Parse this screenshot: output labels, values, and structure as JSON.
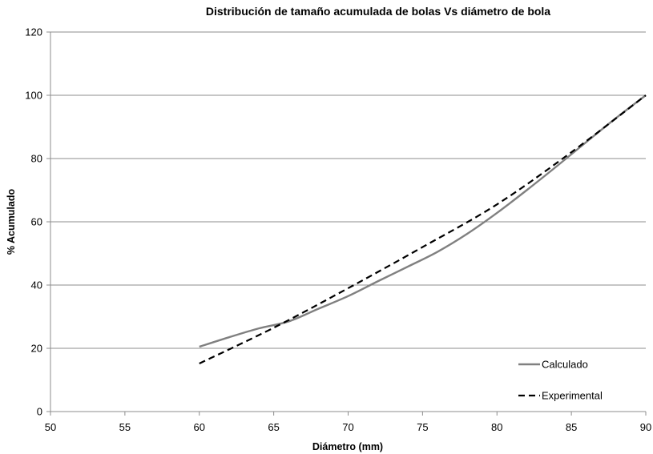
{
  "chart_data": {
    "type": "line",
    "title": "Distribución de tamaño acumulada de bolas Vs diámetro de bola",
    "xlabel": "Diámetro (mm)",
    "ylabel": "% Acumulado",
    "xlim": [
      50,
      90
    ],
    "ylim": [
      0,
      120
    ],
    "xticks": [
      50,
      55,
      60,
      65,
      70,
      75,
      80,
      85,
      90
    ],
    "yticks": [
      0,
      20,
      40,
      60,
      80,
      100,
      120
    ],
    "grid": "horizontal",
    "legend_position": "bottom-right",
    "series": [
      {
        "name": "Calculado",
        "color": "#808080",
        "style": "solid",
        "x": [
          60,
          62,
          64,
          66,
          68,
          70,
          72,
          74,
          76,
          78,
          80,
          82,
          84,
          86,
          88,
          90
        ],
        "y": [
          20.5,
          23.5,
          26.3,
          28.5,
          32.5,
          36.5,
          41.2,
          45.8,
          50.5,
          56.2,
          62.8,
          70.0,
          77.5,
          85.2,
          92.8,
          100
        ]
      },
      {
        "name": "Experimental",
        "color": "#000000",
        "style": "dashed",
        "x": [
          60,
          65,
          70,
          75,
          80,
          85,
          90
        ],
        "y": [
          15.2,
          26.5,
          39.0,
          52.0,
          65.5,
          82.0,
          100
        ]
      }
    ]
  }
}
